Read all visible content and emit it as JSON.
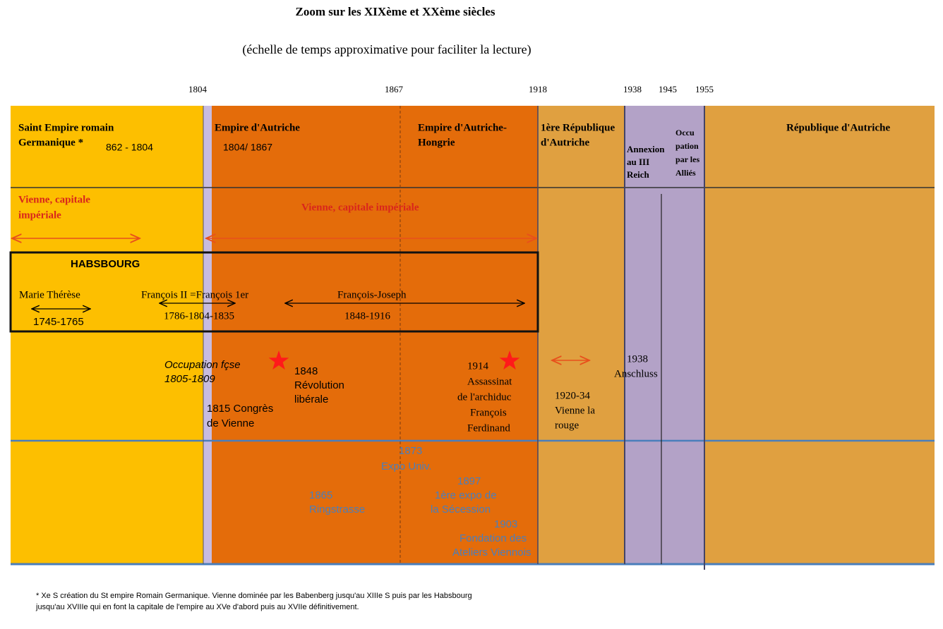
{
  "header": {
    "title": "Zoom sur les XIXème et XXème siècles",
    "subtitle": "(échelle de temps approximative pour faciliter la lecture)"
  },
  "years": [
    "1804",
    "1867",
    "1918",
    "1938",
    "1945",
    "1955"
  ],
  "periods": [
    {
      "name": [
        "Saint Empire romain",
        "Germanique *"
      ],
      "dates": "862 - 1804"
    },
    {
      "name": [
        "Empire d'Autriche"
      ],
      "dates": "1804/ 1867"
    },
    {
      "name": [
        "Empire d'Autriche-",
        "Hongrie"
      ]
    },
    {
      "name": [
        "1ère République",
        "d'Autriche"
      ]
    },
    {
      "name": [
        "Annexion",
        "au III",
        "Reich"
      ]
    },
    {
      "name": [
        "Occu",
        "pation",
        "par les",
        "Alliés"
      ]
    },
    {
      "name": [
        "République d'Autriche"
      ]
    }
  ],
  "capital": [
    "Vienne, capitale",
    "impériale"
  ],
  "capital2": "Vienne, capitale impériale",
  "habsbourg": {
    "title": "HABSBOURG",
    "rulers": [
      {
        "name": "Marie Thérèse",
        "dates": "1745-1765"
      },
      {
        "name": "François II =François 1er",
        "dates": "1786-1804-1835"
      },
      {
        "name": "François-Joseph",
        "dates": "1848-1916"
      }
    ]
  },
  "events": [
    {
      "lines": [
        "Occupation fçse",
        "1805-1809"
      ]
    },
    {
      "lines": [
        "1848",
        "Révolution",
        "libérale"
      ]
    },
    {
      "lines": [
        "1815 Congrès",
        "de Vienne"
      ]
    },
    {
      "lines": [
        "1914",
        "Assassinat",
        "de l'archiduc",
        "François",
        "Ferdinand"
      ]
    },
    {
      "lines": [
        "1920-34",
        "Vienne la",
        "rouge"
      ]
    },
    {
      "lines": [
        "1938",
        "Anschluss"
      ]
    }
  ],
  "culture": [
    {
      "lines": [
        "1873",
        "Expo Univ."
      ]
    },
    {
      "lines": [
        "1865",
        "Ringstrasse"
      ]
    },
    {
      "lines": [
        "1897",
        "1ère expo de",
        "la Sécession"
      ]
    },
    {
      "lines": [
        "1903",
        "Fondation des",
        "Ateliers Viennois"
      ]
    }
  ],
  "footnote": [
    "* Xe S création du St empire Romain Germanique. Vienne dominée par les Babenberg jusqu'au XIIIe S puis par les Habsbourg",
    "jusqu'au XVIIIe qui en font la capitale de l'empire au XVe d'abord puis au XVIIe définitivement."
  ]
}
